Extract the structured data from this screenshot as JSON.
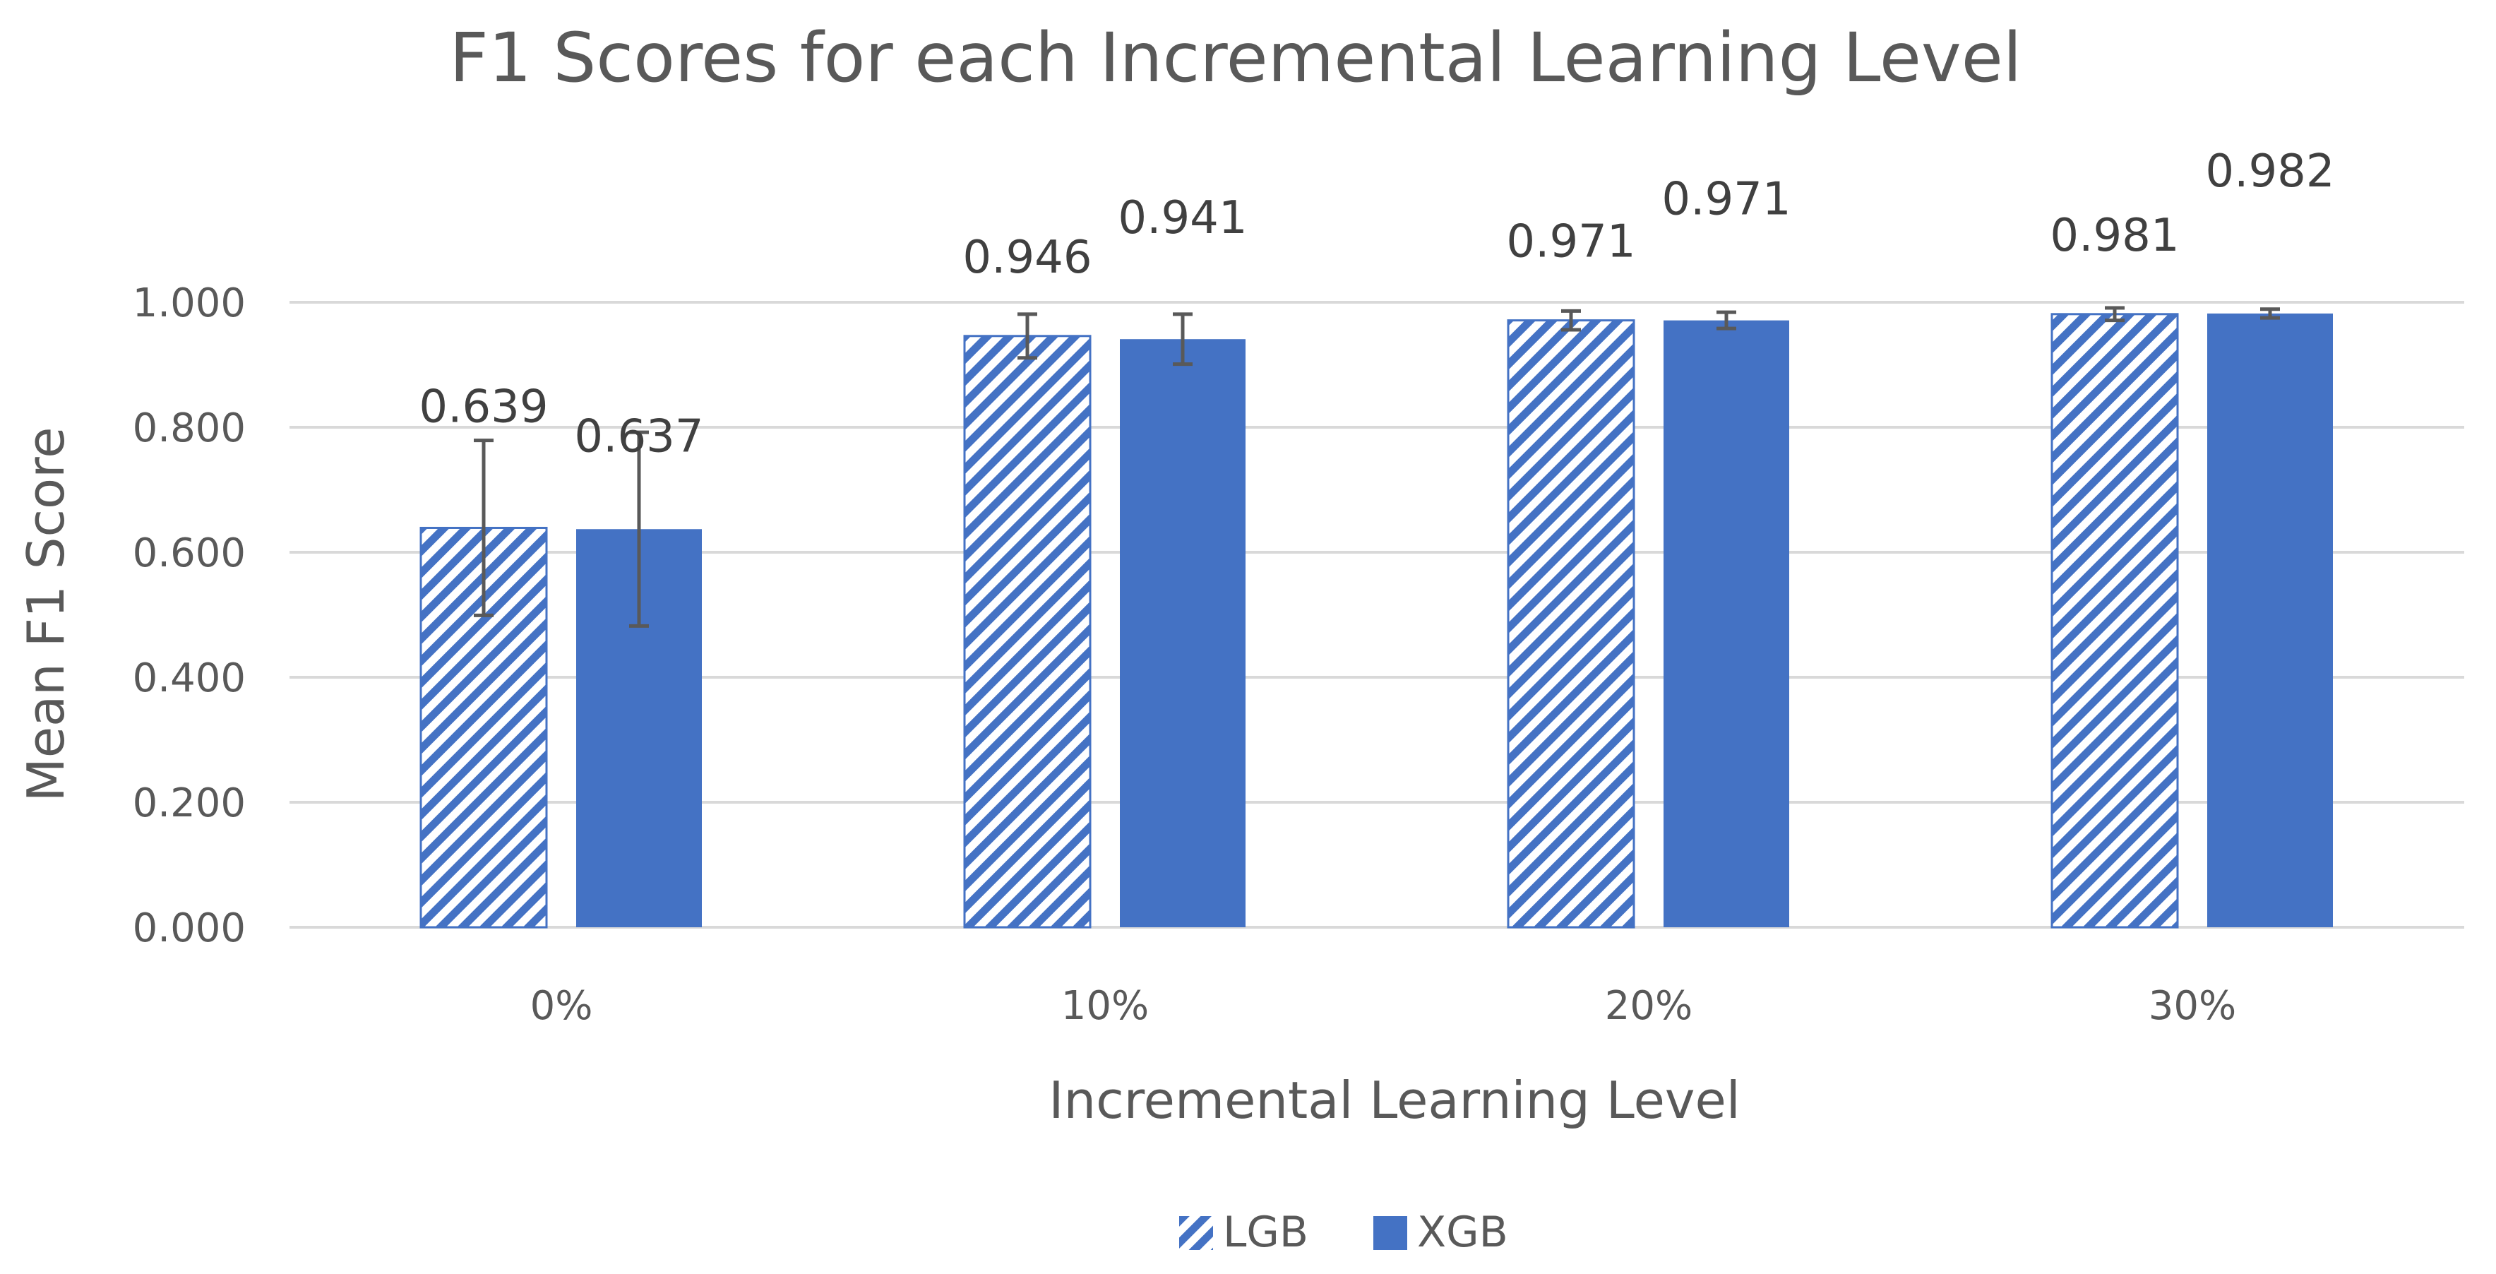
{
  "colors": {
    "accent": "#4472C4",
    "grid": "#d9d9d9",
    "text": "#595959",
    "label": "#404040",
    "errorbar": "#595959"
  },
  "chart_data": {
    "type": "bar",
    "title": "F1 Scores for each Incremental Learning Level",
    "xlabel": "Incremental Learning Level",
    "ylabel": "Mean F1 Score",
    "ylim": [
      0,
      1
    ],
    "yticks": [
      "0.000",
      "0.200",
      "0.400",
      "0.600",
      "0.800",
      "1.000"
    ],
    "ytick_values": [
      0,
      0.2,
      0.4,
      0.6,
      0.8,
      1.0
    ],
    "categories": [
      "0%",
      "10%",
      "20%",
      "30%"
    ],
    "grid": true,
    "legend_position": "bottom",
    "series": [
      {
        "name": "LGB",
        "pattern": "diagonal-hatch",
        "values": [
          0.639,
          0.946,
          0.971,
          0.981
        ],
        "labels": [
          "0.639",
          "0.946",
          "0.971",
          "0.981"
        ],
        "error": [
          0.14,
          0.035,
          0.015,
          0.01
        ]
      },
      {
        "name": "XGB",
        "pattern": "solid",
        "values": [
          0.637,
          0.941,
          0.971,
          0.982
        ],
        "labels": [
          "0.637",
          "0.941",
          "0.971",
          "0.982"
        ],
        "error": [
          0.155,
          0.04,
          0.013,
          0.007
        ]
      }
    ]
  }
}
